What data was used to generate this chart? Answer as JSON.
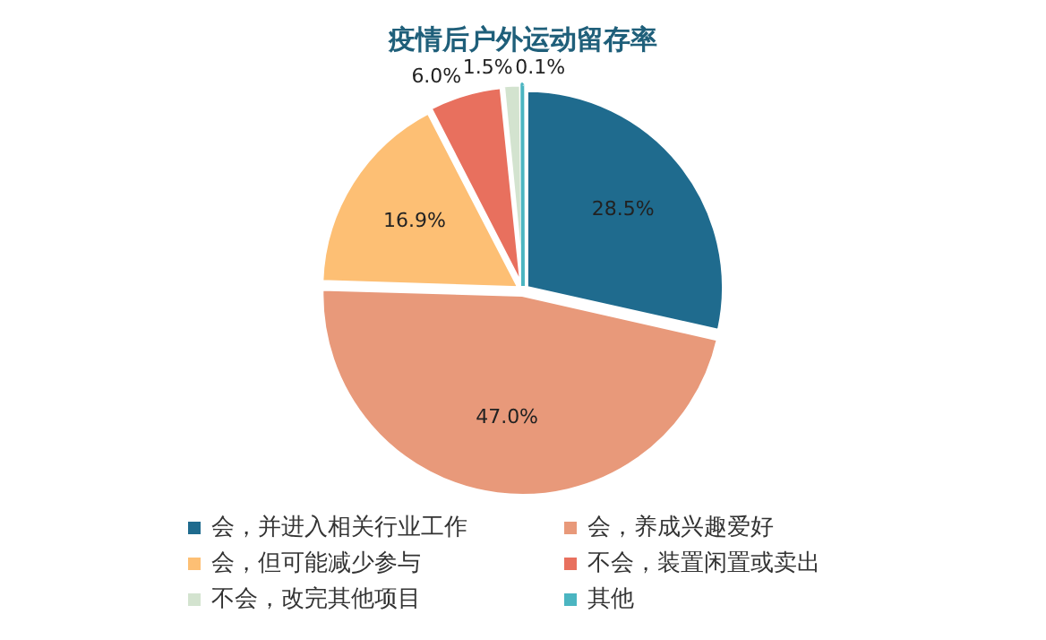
{
  "chart_data": {
    "type": "pie",
    "title": "疫情后户外运动留存率",
    "categories": [
      "会，并进入相关行业工作",
      "会，养成兴趣爱好",
      "会，但可能减少参与",
      "不会，装置闲置或卖出",
      "不会，改完其他项目",
      "其他"
    ],
    "values": [
      28.5,
      47.0,
      16.9,
      6.0,
      1.5,
      0.1
    ],
    "colors": [
      "#1f6b8e",
      "#e8997a",
      "#fdbf74",
      "#e8705e",
      "#d3e3cf",
      "#4bb5c1"
    ],
    "value_labels": [
      "28.5%",
      "47.0%",
      "16.9%",
      "6.0%",
      "1.5%",
      "0.1%"
    ],
    "legend": "bottom"
  }
}
